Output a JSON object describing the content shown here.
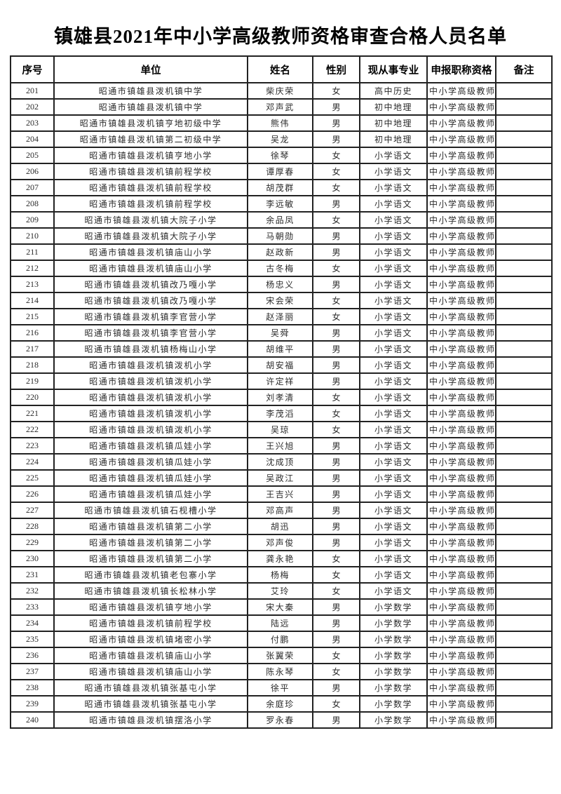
{
  "title": "镇雄县2021年中小学高级教师资格审查合格人员名单",
  "table": {
    "headers": [
      "序号",
      "单位",
      "姓名",
      "性别",
      "现从事专业",
      "申报职称资格",
      "备注"
    ],
    "rows": [
      [
        "201",
        "昭通市镇雄县泼机镇中学",
        "柴庆荣",
        "女",
        "高中历史",
        "中小学高级教师",
        ""
      ],
      [
        "202",
        "昭通市镇雄县泼机镇中学",
        "邓声武",
        "男",
        "初中地理",
        "中小学高级教师",
        ""
      ],
      [
        "203",
        "昭通市镇雄县泼机镇亨地初级中学",
        "熊伟",
        "男",
        "初中地理",
        "中小学高级教师",
        ""
      ],
      [
        "204",
        "昭通市镇雄县泼机镇第二初级中学",
        "吴龙",
        "男",
        "初中地理",
        "中小学高级教师",
        ""
      ],
      [
        "205",
        "昭通市镇雄县泼机镇亨地小学",
        "徐琴",
        "女",
        "小学语文",
        "中小学高级教师",
        ""
      ],
      [
        "206",
        "昭通市镇雄县泼机镇前程学校",
        "谭厚春",
        "女",
        "小学语文",
        "中小学高级教师",
        ""
      ],
      [
        "207",
        "昭通市镇雄县泼机镇前程学校",
        "胡茂群",
        "女",
        "小学语文",
        "中小学高级教师",
        ""
      ],
      [
        "208",
        "昭通市镇雄县泼机镇前程学校",
        "李远敏",
        "男",
        "小学语文",
        "中小学高级教师",
        ""
      ],
      [
        "209",
        "昭通市镇雄县泼机镇大院子小学",
        "余品凤",
        "女",
        "小学语文",
        "中小学高级教师",
        ""
      ],
      [
        "210",
        "昭通市镇雄县泼机镇大院子小学",
        "马朝勋",
        "男",
        "小学语文",
        "中小学高级教师",
        ""
      ],
      [
        "211",
        "昭通市镇雄县泼机镇庙山小学",
        "赵政新",
        "男",
        "小学语文",
        "中小学高级教师",
        ""
      ],
      [
        "212",
        "昭通市镇雄县泼机镇庙山小学",
        "古冬梅",
        "女",
        "小学语文",
        "中小学高级教师",
        ""
      ],
      [
        "213",
        "昭通市镇雄县泼机镇改乃嘎小学",
        "杨忠义",
        "男",
        "小学语文",
        "中小学高级教师",
        ""
      ],
      [
        "214",
        "昭通市镇雄县泼机镇改乃嘎小学",
        "宋会荣",
        "女",
        "小学语文",
        "中小学高级教师",
        ""
      ],
      [
        "215",
        "昭通市镇雄县泼机镇李官营小学",
        "赵泽丽",
        "女",
        "小学语文",
        "中小学高级教师",
        ""
      ],
      [
        "216",
        "昭通市镇雄县泼机镇李官营小学",
        "吴舜",
        "男",
        "小学语文",
        "中小学高级教师",
        ""
      ],
      [
        "217",
        "昭通市镇雄县泼机镇杨梅山小学",
        "胡维平",
        "男",
        "小学语文",
        "中小学高级教师",
        ""
      ],
      [
        "218",
        "昭通市镇雄县泼机镇泼机小学",
        "胡安福",
        "男",
        "小学语文",
        "中小学高级教师",
        ""
      ],
      [
        "219",
        "昭通市镇雄县泼机镇泼机小学",
        "许定祥",
        "男",
        "小学语文",
        "中小学高级教师",
        ""
      ],
      [
        "220",
        "昭通市镇雄县泼机镇泼机小学",
        "刘孝清",
        "女",
        "小学语文",
        "中小学高级教师",
        ""
      ],
      [
        "221",
        "昭通市镇雄县泼机镇泼机小学",
        "李茂滔",
        "女",
        "小学语文",
        "中小学高级教师",
        ""
      ],
      [
        "222",
        "昭通市镇雄县泼机镇泼机小学",
        "吴琼",
        "女",
        "小学语文",
        "中小学高级教师",
        ""
      ],
      [
        "223",
        "昭通市镇雄县泼机镇瓜娃小学",
        "王兴旭",
        "男",
        "小学语文",
        "中小学高级教师",
        ""
      ],
      [
        "224",
        "昭通市镇雄县泼机镇瓜娃小学",
        "沈成顶",
        "男",
        "小学语文",
        "中小学高级教师",
        ""
      ],
      [
        "225",
        "昭通市镇雄县泼机镇瓜娃小学",
        "吴政江",
        "男",
        "小学语文",
        "中小学高级教师",
        ""
      ],
      [
        "226",
        "昭通市镇雄县泼机镇瓜娃小学",
        "王吉兴",
        "男",
        "小学语文",
        "中小学高级教师",
        ""
      ],
      [
        "227",
        "昭通市镇雄县泼机镇石枧槽小学",
        "邓高声",
        "男",
        "小学语文",
        "中小学高级教师",
        ""
      ],
      [
        "228",
        "昭通市镇雄县泼机镇第二小学",
        "胡迅",
        "男",
        "小学语文",
        "中小学高级教师",
        ""
      ],
      [
        "229",
        "昭通市镇雄县泼机镇第二小学",
        "邓声俊",
        "男",
        "小学语文",
        "中小学高级教师",
        ""
      ],
      [
        "230",
        "昭通市镇雄县泼机镇第二小学",
        "龚永艳",
        "女",
        "小学语文",
        "中小学高级教师",
        ""
      ],
      [
        "231",
        "昭通市镇雄县泼机镇老包寨小学",
        "杨梅",
        "女",
        "小学语文",
        "中小学高级教师",
        ""
      ],
      [
        "232",
        "昭通市镇雄县泼机镇长松林小学",
        "艾玲",
        "女",
        "小学语文",
        "中小学高级教师",
        ""
      ],
      [
        "233",
        "昭通市镇雄县泼机镇亨地小学",
        "宋大秦",
        "男",
        "小学数学",
        "中小学高级教师",
        ""
      ],
      [
        "234",
        "昭通市镇雄县泼机镇前程学校",
        "陆远",
        "男",
        "小学数学",
        "中小学高级教师",
        ""
      ],
      [
        "235",
        "昭通市镇雄县泼机镇堵密小学",
        "付鹏",
        "男",
        "小学数学",
        "中小学高级教师",
        ""
      ],
      [
        "236",
        "昭通市镇雄县泼机镇庙山小学",
        "张翼荣",
        "女",
        "小学数学",
        "中小学高级教师",
        ""
      ],
      [
        "237",
        "昭通市镇雄县泼机镇庙山小学",
        "陈永琴",
        "女",
        "小学数学",
        "中小学高级教师",
        ""
      ],
      [
        "238",
        "昭通市镇雄县泼机镇张基屯小学",
        "徐平",
        "男",
        "小学数学",
        "中小学高级教师",
        ""
      ],
      [
        "239",
        "昭通市镇雄县泼机镇张基屯小学",
        "余庭珍",
        "女",
        "小学数学",
        "中小学高级教师",
        ""
      ],
      [
        "240",
        "昭通市镇雄县泼机镇摆洛小学",
        "罗永春",
        "男",
        "小学数学",
        "中小学高级教师",
        ""
      ]
    ]
  }
}
